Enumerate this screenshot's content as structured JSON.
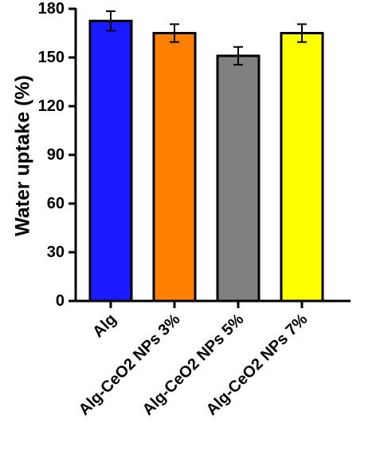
{
  "chart_data": {
    "type": "bar",
    "title": "",
    "xlabel": "",
    "ylabel": "Water uptake (%)",
    "ylim": [
      0,
      180
    ],
    "yticks": [
      0,
      30,
      60,
      90,
      120,
      150,
      180
    ],
    "grid": false,
    "categories": [
      "Alg",
      "Alg-CeO2 NPs 3%",
      "Alg-CeO2 NPs 5%",
      "Alg-CeO2 NPs 7%"
    ],
    "values": [
      172.5,
      165,
      151,
      165
    ],
    "errors": [
      6,
      5.5,
      5.5,
      5.5
    ],
    "colors": [
      "#1a1aff",
      "#ff7f00",
      "#808080",
      "#ffff00"
    ],
    "edge_color": "#000000"
  }
}
